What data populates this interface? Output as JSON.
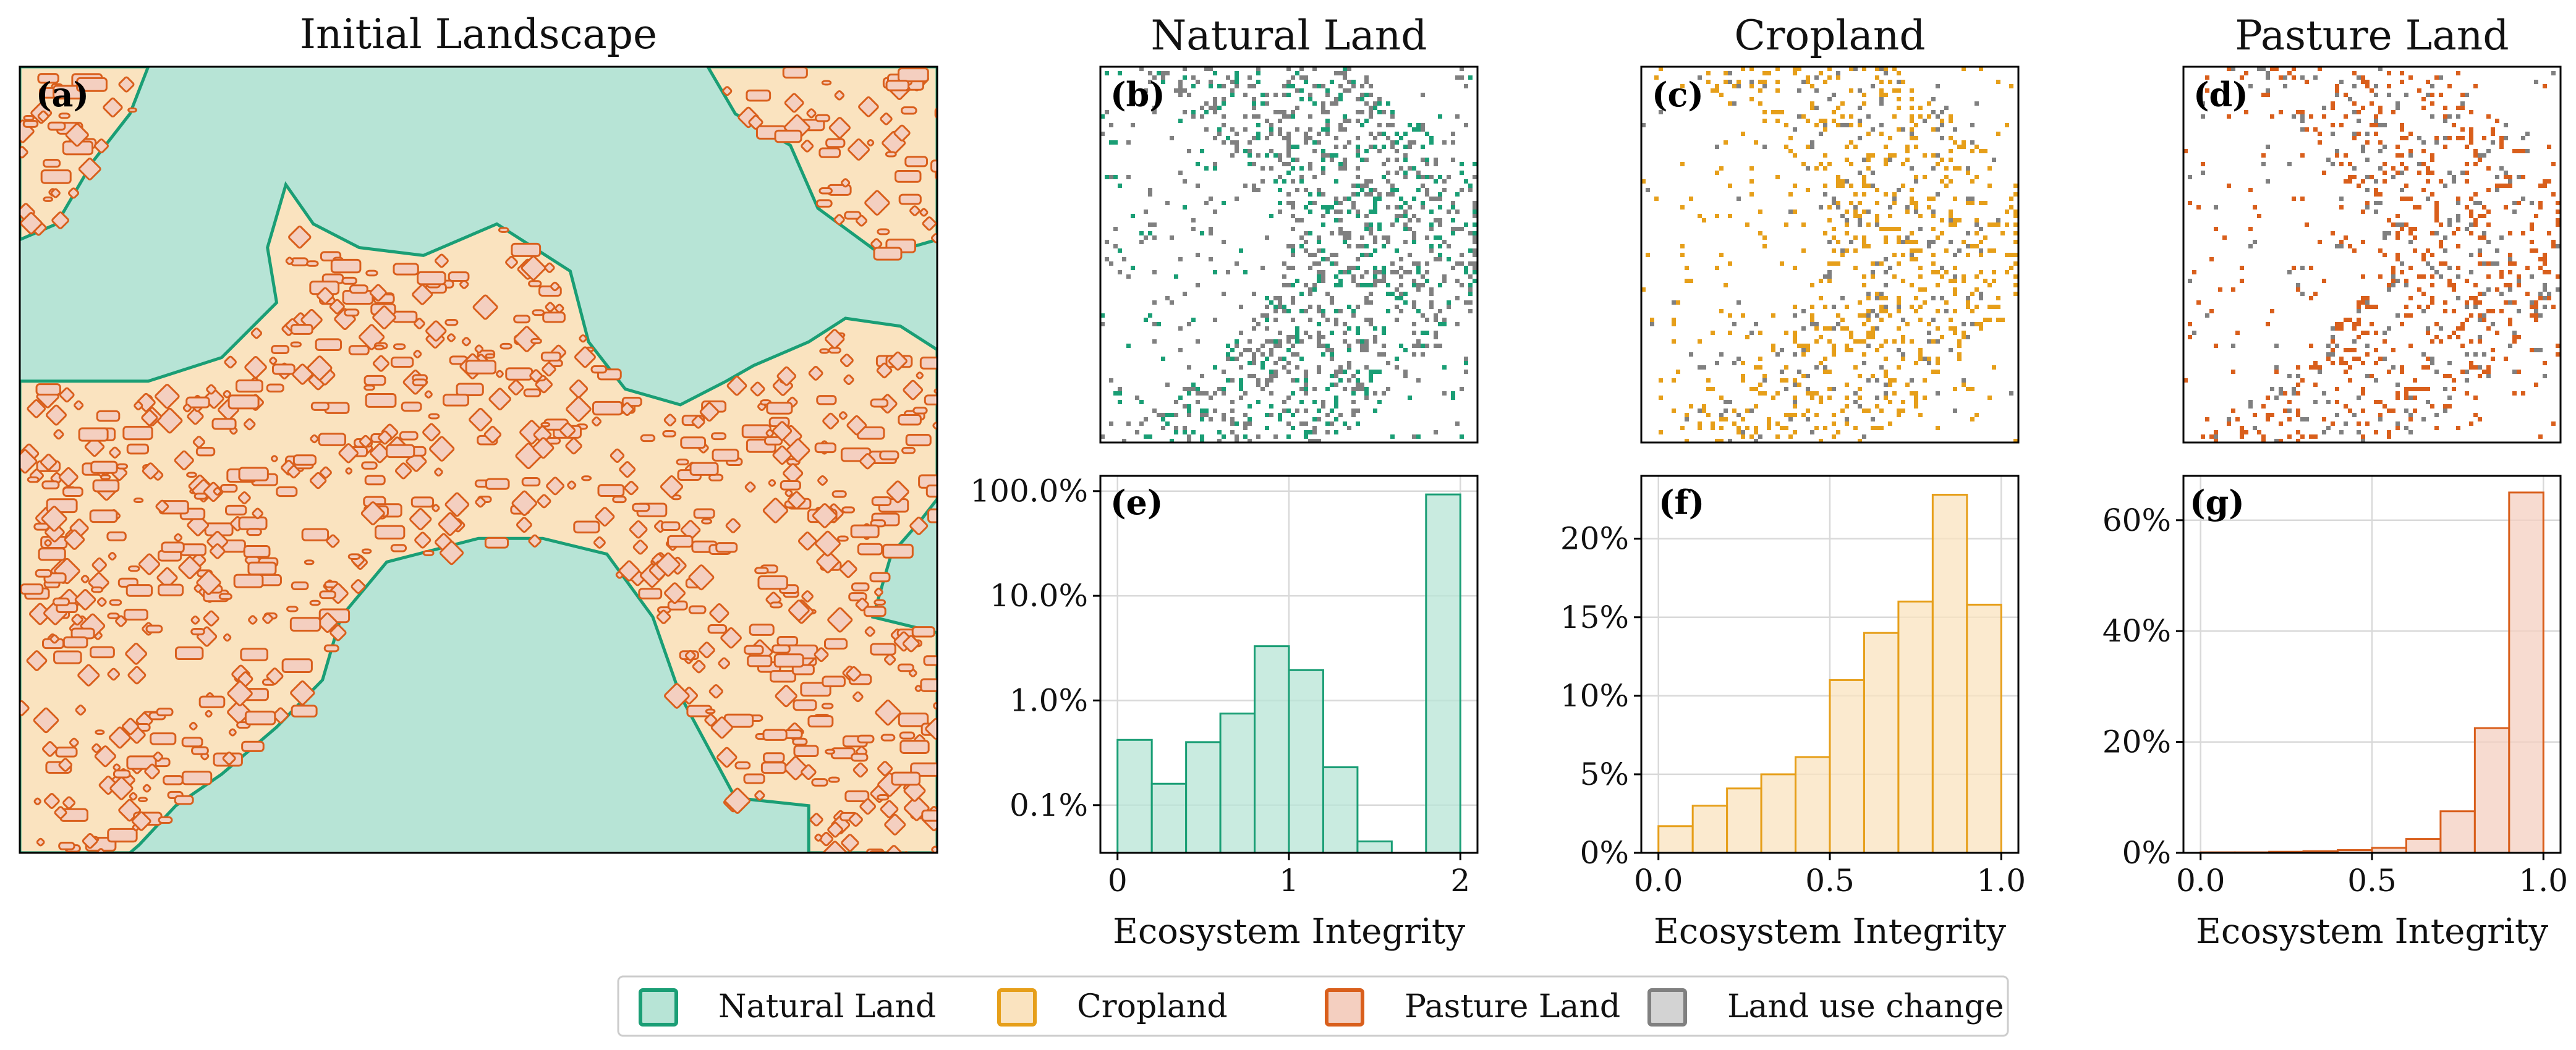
{
  "colors": {
    "natural_fill": "#b7e4d6",
    "natural_edge": "#1a9e75",
    "crop_fill": "#fae3bf",
    "crop_edge": "#e69f1a",
    "pasture_fill": "#f4cfc0",
    "pasture_edge": "#d95f1c",
    "change_fill": "#d3d3d3",
    "change_edge": "#808080",
    "grid": "#d9d9d9"
  },
  "panels": {
    "a": {
      "title": "Initial Landscape",
      "label": "(a)"
    },
    "b": {
      "title": "Natural Land",
      "label": "(b)"
    },
    "c": {
      "title": "Cropland",
      "label": "(c)"
    },
    "d": {
      "title": "Pasture Land",
      "label": "(d)"
    },
    "e": {
      "label": "(e)"
    },
    "f": {
      "label": "(f)"
    },
    "g": {
      "label": "(g)"
    }
  },
  "chart_data": [
    {
      "id": "e",
      "type": "bar",
      "series_name": "Natural Land",
      "xlabel": "Ecosystem Integrity",
      "ylabel": "",
      "yscale": "log",
      "xlim": [
        -0.1,
        2.1
      ],
      "ylim": [
        0.035,
        140
      ],
      "bin_width": 0.2,
      "bin_starts": [
        0.0,
        0.2,
        0.4,
        0.6,
        0.8,
        1.0,
        1.2,
        1.4,
        1.8
      ],
      "values_percent": [
        0.42,
        0.16,
        0.4,
        0.75,
        3.3,
        1.95,
        0.23,
        0.045,
        93.0
      ],
      "xticks": [
        0,
        1,
        2
      ],
      "xtick_labels": [
        "0",
        "1",
        "2"
      ],
      "yticks": [
        0.1,
        1,
        10,
        100
      ],
      "ytick_labels": [
        "0.1%",
        "1.0%",
        "10.0%",
        "100.0%"
      ]
    },
    {
      "id": "f",
      "type": "bar",
      "series_name": "Cropland",
      "xlabel": "Ecosystem Integrity",
      "ylabel": "",
      "xlim": [
        -0.05,
        1.05
      ],
      "ylim": [
        0,
        24
      ],
      "bin_width": 0.1,
      "bin_starts": [
        0.0,
        0.1,
        0.2,
        0.3,
        0.4,
        0.5,
        0.6,
        0.7,
        0.8,
        0.9
      ],
      "values_percent": [
        1.7,
        3.0,
        4.1,
        5.0,
        6.1,
        11.0,
        14.0,
        16.0,
        22.8,
        15.8
      ],
      "xticks": [
        0,
        0.5,
        1.0
      ],
      "xtick_labels": [
        "0.0",
        "0.5",
        "1.0"
      ],
      "yticks": [
        0,
        5,
        10,
        15,
        20
      ],
      "ytick_labels": [
        "0%",
        "5%",
        "10%",
        "15%",
        "20%"
      ]
    },
    {
      "id": "g",
      "type": "bar",
      "series_name": "Pasture Land",
      "xlabel": "Ecosystem Integrity",
      "ylabel": "",
      "xlim": [
        -0.05,
        1.05
      ],
      "ylim": [
        0,
        68
      ],
      "bin_width": 0.1,
      "bin_starts": [
        0.0,
        0.1,
        0.2,
        0.3,
        0.4,
        0.5,
        0.6,
        0.7,
        0.8,
        0.9
      ],
      "values_percent": [
        0.1,
        0.1,
        0.2,
        0.3,
        0.5,
        0.9,
        2.5,
        7.5,
        22.5,
        65.0
      ],
      "xticks": [
        0,
        0.5,
        1.0
      ],
      "xtick_labels": [
        "0.0",
        "0.5",
        "1.0"
      ],
      "yticks": [
        0,
        20,
        40,
        60
      ],
      "ytick_labels": [
        "0%",
        "20%",
        "40%",
        "60%"
      ]
    }
  ],
  "legend": {
    "placement": "bottom-center",
    "items": [
      {
        "label": "Natural Land",
        "key": "natural"
      },
      {
        "label": "Cropland",
        "key": "crop"
      },
      {
        "label": "Pasture Land",
        "key": "pasture"
      },
      {
        "label": "Land use change",
        "key": "change"
      }
    ]
  }
}
